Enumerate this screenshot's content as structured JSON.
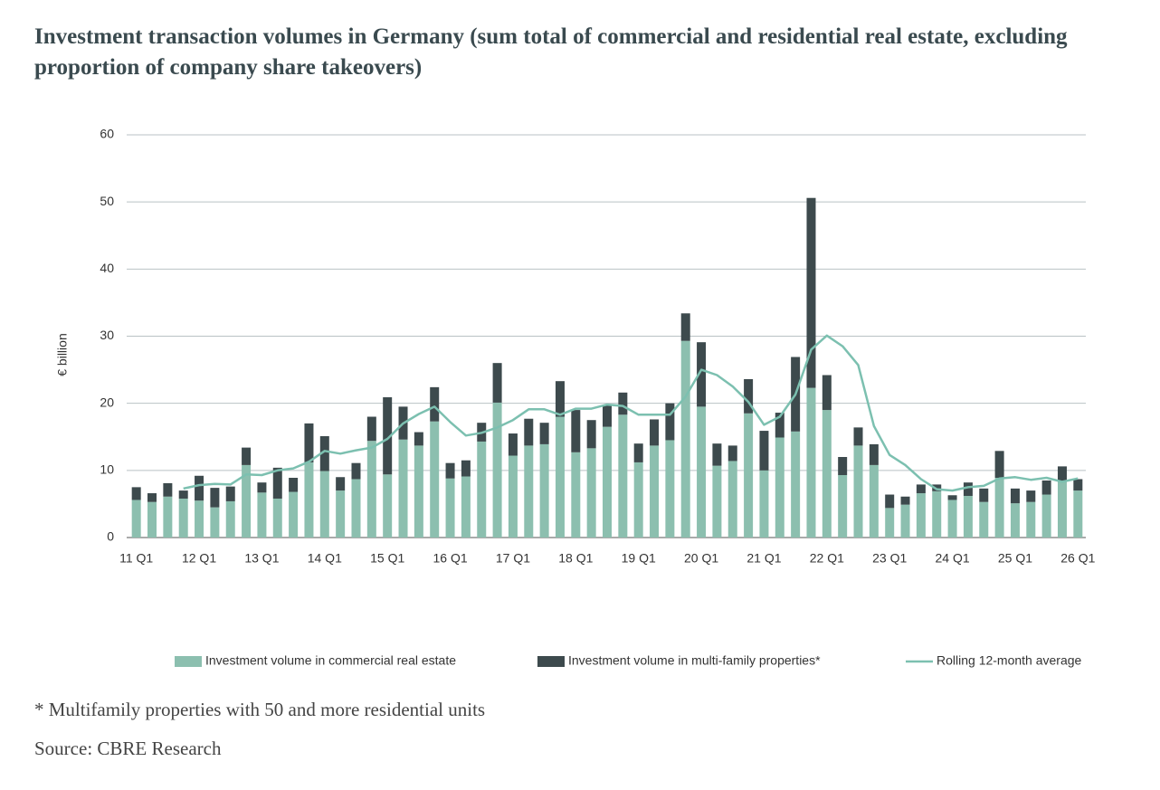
{
  "chart_data": {
    "type": "bar",
    "stacked": true,
    "title": "Investment transaction volumes in Germany (sum total of commercial and residential real estate, excluding proportion of company share takeovers)",
    "y_label": "€ billion",
    "footnote": "* Multifamily properties with 50 and more residential units",
    "source": "Source: CBRE Research",
    "categories": [
      "11 Q1",
      null,
      null,
      null,
      "12 Q1",
      null,
      null,
      null,
      "13 Q1",
      null,
      null,
      null,
      "14 Q1",
      null,
      null,
      null,
      "15 Q1",
      null,
      null,
      null,
      "16 Q1",
      null,
      null,
      null,
      "17 Q1",
      null,
      null,
      null,
      "18 Q1",
      null,
      null,
      null,
      "19 Q1",
      null,
      null,
      null,
      "20 Q1",
      null,
      null,
      null,
      "21 Q1",
      null,
      null,
      null,
      "22 Q1",
      null,
      null,
      null,
      "23 Q1",
      null,
      null,
      null,
      "24 Q1",
      null,
      null,
      null,
      "25 Q1",
      null,
      null,
      null,
      "26 Q1"
    ],
    "series": [
      {
        "name": "Investment volume in commercial real estate",
        "color": "#8cbfaf",
        "type": "bar",
        "values": [
          5.6,
          5.3,
          6.1,
          5.8,
          5.5,
          4.5,
          5.4,
          10.8,
          6.7,
          5.8,
          6.8,
          11.2,
          9.9,
          7.0,
          8.7,
          14.4,
          9.4,
          14.6,
          13.7,
          17.3,
          8.8,
          9.1,
          14.3,
          20.1,
          12.2,
          13.7,
          13.9,
          18.0,
          12.7,
          13.3,
          16.5,
          18.3,
          11.2,
          13.7,
          14.5,
          29.3,
          19.5,
          10.7,
          11.4,
          18.5,
          10.0,
          14.9,
          15.8,
          22.3,
          19.0,
          9.3,
          13.7,
          10.8,
          4.4,
          4.9,
          6.6,
          6.9,
          5.6,
          6.2,
          5.3,
          8.9,
          5.1,
          5.3,
          6.4,
          8.4,
          7.0
        ]
      },
      {
        "name": "Investment volume in multi-family properties*",
        "color": "#3d4a4d",
        "type": "bar",
        "values": [
          1.9,
          1.3,
          2.0,
          1.2,
          3.7,
          2.9,
          2.2,
          2.6,
          1.5,
          4.6,
          2.1,
          5.8,
          5.2,
          2.0,
          2.4,
          3.6,
          11.5,
          4.9,
          2.0,
          5.1,
          2.3,
          2.4,
          2.8,
          5.9,
          3.3,
          4.0,
          3.2,
          5.3,
          6.3,
          4.2,
          3.3,
          3.3,
          2.8,
          3.9,
          5.5,
          4.1,
          9.6,
          3.3,
          2.3,
          5.1,
          5.9,
          3.7,
          11.1,
          28.3,
          5.2,
          2.7,
          2.7,
          3.1,
          2.0,
          1.2,
          1.3,
          1.0,
          0.7,
          2.0,
          2.0,
          4.0,
          2.2,
          1.7,
          2.1,
          2.2,
          1.7
        ]
      },
      {
        "name": "Rolling 12-month average",
        "color": "#7cc0b0",
        "type": "line",
        "values": [
          null,
          null,
          null,
          7.3,
          7.8,
          8.0,
          7.9,
          9.4,
          9.3,
          10.0,
          10.3,
          11.3,
          12.9,
          12.5,
          13.0,
          13.4,
          14.7,
          17.0,
          18.4,
          19.5,
          17.2,
          15.2,
          15.6,
          16.4,
          17.5,
          19.1,
          19.1,
          18.3,
          19.2,
          19.2,
          19.8,
          19.6,
          18.3,
          18.3,
          18.3,
          21.0,
          25.0,
          24.2,
          22.5,
          20.2,
          16.8,
          18.0,
          21.3,
          28.0,
          30.1,
          28.5,
          25.7,
          16.6,
          12.3,
          10.8,
          8.7,
          7.2,
          7.0,
          7.5,
          7.7,
          8.8,
          9.0,
          8.6,
          8.9,
          8.3,
          8.8
        ]
      }
    ],
    "ylim": [
      0,
      60
    ],
    "yticks": [
      0,
      10,
      20,
      30,
      40,
      50,
      60
    ],
    "grid": true
  }
}
